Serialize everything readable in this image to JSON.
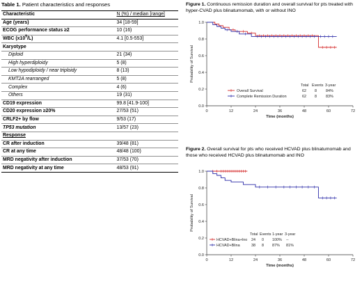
{
  "table": {
    "caption_label": "Table 1.",
    "caption_text": "Patient characteristics and responses",
    "header": {
      "col1": "Characteristic",
      "col2": "N (%) / median [range]"
    },
    "rows": [
      {
        "label": "Age (years)",
        "value": "34 [18-59]",
        "style": "bold"
      },
      {
        "label": "ECOG performance status ≥2",
        "value": "10 (16)",
        "style": "bold"
      },
      {
        "label_main": "WBC (x10",
        "label_sup": "9",
        "label_tail": "/L)",
        "value": "4.1 [0.5-553]",
        "style": "bold-sup"
      },
      {
        "label": "Karyotype",
        "value": "",
        "style": "bold"
      },
      {
        "label": "Diploid",
        "value": "21 (34)",
        "style": "italic"
      },
      {
        "label": "High hyperdiploidy",
        "value": "5 (8)",
        "style": "italic"
      },
      {
        "label": "Low hypodiploidy / near triploidy",
        "value": "8 (13)",
        "style": "italic"
      },
      {
        "label": "KMT2A rearranged",
        "value": "5 (8)",
        "style": "italic"
      },
      {
        "label": "Complex",
        "value": "4 (6)",
        "style": "italic"
      },
      {
        "label": "Others",
        "value": "19 (31)",
        "style": "italic"
      },
      {
        "label": "CD19 expression",
        "value": "99.8 [41.9-100]",
        "style": "bold"
      },
      {
        "label": "CD20 expression ≥20%",
        "value": "27/53 (51)",
        "style": "bold"
      },
      {
        "label": "CRLF2+ by flow",
        "value": "9/53 (17)",
        "style": "bold"
      },
      {
        "label": "TP53 mutation",
        "value": "13/57 (23)",
        "style": "bold-italic"
      }
    ],
    "response_header": "Response",
    "response_rows": [
      {
        "label": "CR after induction",
        "value": "39/48 (81)"
      },
      {
        "label": "CR at any time",
        "value": "48/48 (100)"
      },
      {
        "label": "MRD negativity after induction",
        "value": "37/53 (70)"
      },
      {
        "label": "MRD negativity at any time",
        "value": "48/53 (91)"
      }
    ]
  },
  "figure1": {
    "caption_label": "Figure 1.",
    "caption_text": "Continuous remission duration and overall survival for pts treated with hyper-CVAD plus blinatumomab, with or without INO",
    "ylabel": "Probability of Survival",
    "xlabel": "Time (months)",
    "x_ticks": [
      "0",
      "12",
      "24",
      "36",
      "48",
      "60",
      "72"
    ],
    "y_ticks": [
      "0.0",
      "0.2",
      "0.4",
      "0.6",
      "0.8",
      "1.0"
    ],
    "legend_header": {
      "total": "Total",
      "events": "Events",
      "rate": "3-year"
    },
    "legend": [
      {
        "name": "Overall Survival",
        "total": "62",
        "events": "8",
        "rate": "84%",
        "color": "#d42a2a"
      },
      {
        "name": "Complete Remission Duration",
        "total": "62",
        "events": "8",
        "rate": "83%",
        "color": "#2c2ca8"
      }
    ]
  },
  "figure2": {
    "caption_label": "Figure 2.",
    "caption_text": "Overall survival for pts who received HCVAD plus blinatumomab and those who received HCVAD plus blinatumomab and INO",
    "ylabel": "Probability of Survival",
    "xlabel": "Time (months)",
    "x_ticks": [
      "0",
      "12",
      "24",
      "36",
      "48",
      "60",
      "72"
    ],
    "y_ticks": [
      "0.0",
      "0.2",
      "0.4",
      "0.6",
      "0.8",
      "1.0"
    ],
    "legend_header": {
      "total": "Total",
      "events": "Events",
      "rate1": "1-year",
      "rate3": "3-year"
    },
    "legend": [
      {
        "name": "HCVAD+Blina+Ino",
        "total": "24",
        "events": "0",
        "rate1": "100%",
        "rate3": "--",
        "color": "#d42a2a"
      },
      {
        "name": "HCVAD+Blina",
        "total": "38",
        "events": "8",
        "rate1": "87%",
        "rate3": "81%",
        "color": "#2c2ca8"
      }
    ]
  },
  "chart_data": [
    {
      "type": "line",
      "chart": "figure1",
      "xlim": [
        0,
        72
      ],
      "ylim": [
        0,
        1
      ],
      "grid": false,
      "legend_placement": "bottom-center",
      "series": [
        {
          "name": "Overall Survival",
          "x": [
            0,
            4,
            6,
            8,
            11,
            14,
            20,
            24,
            55,
            64
          ],
          "y": [
            1.0,
            0.98,
            0.96,
            0.94,
            0.91,
            0.89,
            0.87,
            0.84,
            0.7,
            0.7
          ],
          "censor_x": [
            13,
            18,
            22,
            26,
            28,
            30,
            32,
            34,
            36,
            38,
            40,
            42,
            44,
            46,
            48,
            50,
            52,
            57,
            59,
            61,
            63
          ]
        },
        {
          "name": "Complete Remission Duration",
          "x": [
            0,
            3,
            5,
            7,
            9,
            12,
            16,
            22,
            64
          ],
          "y": [
            1.0,
            0.97,
            0.95,
            0.93,
            0.91,
            0.89,
            0.86,
            0.83,
            0.83
          ],
          "censor_x": [
            10,
            15,
            19,
            25,
            27,
            29,
            31,
            33,
            35,
            37,
            39,
            41,
            43,
            45,
            47,
            49,
            51,
            53,
            56,
            58,
            60,
            62
          ]
        }
      ]
    },
    {
      "type": "line",
      "chart": "figure2",
      "xlim": [
        0,
        72
      ],
      "ylim": [
        0,
        1
      ],
      "grid": false,
      "legend_placement": "bottom-left",
      "series": [
        {
          "name": "HCVAD+Blina+Ino",
          "x": [
            0,
            20
          ],
          "y": [
            1.0,
            1.0
          ],
          "censor_x": [
            3,
            5,
            7,
            8,
            9,
            10,
            11,
            12,
            13,
            14,
            15,
            16,
            17,
            18,
            19
          ]
        },
        {
          "name": "HCVAD+Blina",
          "x": [
            0,
            3,
            5,
            7,
            9,
            12,
            18,
            24,
            55,
            64
          ],
          "y": [
            1.0,
            0.97,
            0.95,
            0.92,
            0.89,
            0.87,
            0.84,
            0.81,
            0.68,
            0.68
          ],
          "censor_x": [
            26,
            30,
            34,
            38,
            41,
            44,
            47,
            50,
            53,
            57,
            59,
            61,
            63
          ]
        }
      ]
    }
  ]
}
